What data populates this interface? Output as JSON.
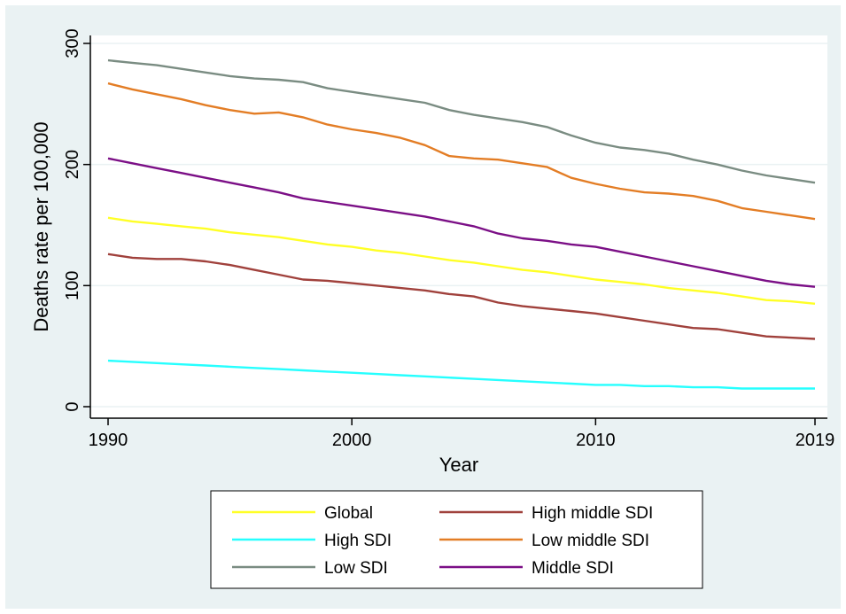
{
  "chart_data": {
    "type": "line",
    "title": "",
    "xlabel": "Year",
    "ylabel": "Deaths rate per 100,000",
    "xlim": [
      1990,
      2019
    ],
    "ylim": [
      0,
      300
    ],
    "x_ticks": [
      1990,
      2000,
      2010,
      2019
    ],
    "y_ticks": [
      0,
      100,
      200,
      300
    ],
    "grid": true,
    "legend_position": "bottom",
    "x": [
      1990,
      1991,
      1992,
      1993,
      1994,
      1995,
      1996,
      1997,
      1998,
      1999,
      2000,
      2001,
      2002,
      2003,
      2004,
      2005,
      2006,
      2007,
      2008,
      2009,
      2010,
      2011,
      2012,
      2013,
      2014,
      2015,
      2016,
      2017,
      2018,
      2019
    ],
    "series": [
      {
        "name": "Global",
        "color": "#ffff26",
        "values": [
          156,
          153,
          151,
          149,
          147,
          144,
          142,
          140,
          137,
          134,
          132,
          129,
          127,
          124,
          121,
          119,
          116,
          113,
          111,
          108,
          105,
          103,
          101,
          98,
          96,
          94,
          91,
          88,
          87,
          85
        ]
      },
      {
        "name": "High middle SDI",
        "color": "#a0413c",
        "values": [
          126,
          123,
          122,
          122,
          120,
          117,
          113,
          109,
          105,
          104,
          102,
          100,
          98,
          96,
          93,
          91,
          86,
          83,
          81,
          79,
          77,
          74,
          71,
          68,
          65,
          64,
          61,
          58,
          57,
          56
        ]
      },
      {
        "name": "High SDI",
        "color": "#26ffff",
        "values": [
          38,
          37,
          36,
          35,
          34,
          33,
          32,
          31,
          30,
          29,
          28,
          27,
          26,
          25,
          24,
          23,
          22,
          21,
          20,
          19,
          18,
          18,
          17,
          17,
          16,
          16,
          15,
          15,
          15,
          15
        ]
      },
      {
        "name": "Low middle SDI",
        "color": "#e37d25",
        "values": [
          267,
          262,
          258,
          254,
          249,
          245,
          242,
          243,
          239,
          233,
          229,
          226,
          222,
          216,
          207,
          205,
          204,
          201,
          198,
          189,
          184,
          180,
          177,
          176,
          174,
          170,
          164,
          161,
          158,
          155
        ]
      },
      {
        "name": "Low SDI",
        "color": "#7a8c82",
        "values": [
          286,
          284,
          282,
          279,
          276,
          273,
          271,
          270,
          268,
          263,
          260,
          257,
          254,
          251,
          245,
          241,
          238,
          235,
          231,
          224,
          218,
          214,
          212,
          209,
          204,
          200,
          195,
          191,
          188,
          185
        ]
      },
      {
        "name": "Middle SDI",
        "color": "#7b0f86",
        "values": [
          205,
          201,
          197,
          193,
          189,
          185,
          181,
          177,
          172,
          169,
          166,
          163,
          160,
          157,
          153,
          149,
          143,
          139,
          137,
          134,
          132,
          128,
          124,
          120,
          116,
          112,
          108,
          104,
          101,
          99
        ]
      }
    ],
    "legend_order": [
      "Global",
      "High middle SDI",
      "High SDI",
      "Low middle SDI",
      "Low SDI",
      "Middle SDI"
    ]
  }
}
